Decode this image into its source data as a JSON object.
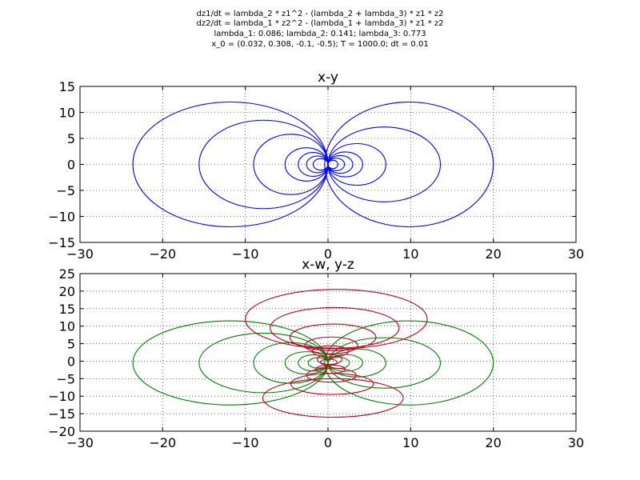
{
  "figure": {
    "suptitle_lines": [
      "dz1/dt = lambda_2 * z1^2 - (lambda_2 + lambda_3) * z1 * z2",
      "dz2/dt = lambda_1 * z2^2 - (lambda_1 + lambda_3) * z1 * z2",
      "lambda_1: 0.086; lambda_2: 0.141; lambda_3: 0.773",
      "x_0 = (0.032, 0.308, -0.1, -0.5); T = 1000.0; dt = 0.01"
    ]
  },
  "chart_data": [
    {
      "type": "line",
      "title": "x-y",
      "xlim": [
        -30,
        30
      ],
      "ylim": [
        -15,
        15
      ],
      "xticks": [
        -30,
        -20,
        -10,
        0,
        10,
        20,
        30
      ],
      "yticks": [
        -15,
        -10,
        -5,
        0,
        5,
        10,
        15
      ],
      "xtick_labels": [
        "−30",
        "−20",
        "−10",
        "0",
        "10",
        "20",
        "30"
      ],
      "ytick_labels": [
        "−15",
        "−10",
        "−5",
        "0",
        "5",
        "10",
        "15"
      ],
      "grid": true,
      "series": [
        {
          "color": "#0000ff",
          "loops": [
            {
              "cx": -11.8,
              "cy": 0,
              "rx": 11.8,
              "ry": 12
            },
            {
              "cx": -7.8,
              "cy": 0,
              "rx": 7.8,
              "ry": 8.5
            },
            {
              "cx": -4.5,
              "cy": 0,
              "rx": 4.5,
              "ry": 5.8
            },
            {
              "cx": -2.6,
              "cy": 0,
              "rx": 2.6,
              "ry": 3.2
            },
            {
              "cx": -1.8,
              "cy": 0,
              "rx": 1.8,
              "ry": 2.3
            },
            {
              "cx": -1.3,
              "cy": 0,
              "rx": 1.3,
              "ry": 1.6
            },
            {
              "cx": -0.9,
              "cy": 0,
              "rx": 0.9,
              "ry": 1.1
            },
            {
              "cx": 9.8,
              "cy": 0,
              "rx": 10.2,
              "ry": 12
            },
            {
              "cx": 6.8,
              "cy": 0,
              "rx": 6.8,
              "ry": 7.2
            },
            {
              "cx": 3.5,
              "cy": 0,
              "rx": 3.5,
              "ry": 4
            },
            {
              "cx": 2.1,
              "cy": 0,
              "rx": 2.1,
              "ry": 2.4
            },
            {
              "cx": 1.5,
              "cy": 0,
              "rx": 1.5,
              "ry": 1.7
            },
            {
              "cx": 1.0,
              "cy": 0,
              "rx": 1.0,
              "ry": 1.2
            },
            {
              "cx": 0.6,
              "cy": 0,
              "rx": 0.6,
              "ry": 0.8
            }
          ]
        }
      ]
    },
    {
      "type": "line",
      "title": "x-w, y-z",
      "xlim": [
        -30,
        30
      ],
      "ylim": [
        -20,
        25
      ],
      "xticks": [
        -30,
        -20,
        -10,
        0,
        10,
        20,
        30
      ],
      "yticks": [
        -20,
        -15,
        -10,
        -5,
        0,
        5,
        10,
        15,
        20,
        25
      ],
      "xtick_labels": [
        "−30",
        "−20",
        "−10",
        "0",
        "10",
        "20",
        "30"
      ],
      "ytick_labels": [
        "−20",
        "−15",
        "−10",
        "−5",
        "0",
        "5",
        "10",
        "15",
        "20",
        "25"
      ],
      "grid": true,
      "series": [
        {
          "color": "#008000",
          "loops": [
            {
              "cx": -11.8,
              "cy": -0.5,
              "rx": 11.8,
              "ry": 12
            },
            {
              "cx": -7.8,
              "cy": -0.5,
              "rx": 7.8,
              "ry": 8.5
            },
            {
              "cx": -4.5,
              "cy": -0.5,
              "rx": 4.5,
              "ry": 5.8
            },
            {
              "cx": -2.6,
              "cy": -0.5,
              "rx": 2.6,
              "ry": 3.2
            },
            {
              "cx": -1.8,
              "cy": -0.5,
              "rx": 1.8,
              "ry": 2.3
            },
            {
              "cx": -1.2,
              "cy": -0.5,
              "rx": 1.2,
              "ry": 1.5
            },
            {
              "cx": 9.8,
              "cy": -0.5,
              "rx": 10.2,
              "ry": 12
            },
            {
              "cx": 6.8,
              "cy": -0.5,
              "rx": 6.8,
              "ry": 7.2
            },
            {
              "cx": 3.5,
              "cy": -0.5,
              "rx": 3.5,
              "ry": 4
            },
            {
              "cx": 2.1,
              "cy": -0.5,
              "rx": 2.1,
              "ry": 2.4
            },
            {
              "cx": 1.3,
              "cy": -0.5,
              "rx": 1.3,
              "ry": 1.6
            }
          ]
        },
        {
          "color": "#c00020",
          "loops": [
            {
              "cx": 1.0,
              "cy": 12,
              "rx": 11,
              "ry": 8.5
            },
            {
              "cx": 0.8,
              "cy": 9.5,
              "rx": 7.8,
              "ry": 5.8
            },
            {
              "cx": 0.6,
              "cy": 6.8,
              "rx": 5.2,
              "ry": 3.8
            },
            {
              "cx": 0.4,
              "cy": 4.5,
              "rx": 3.2,
              "ry": 2.4
            },
            {
              "cx": 0.3,
              "cy": 2.8,
              "rx": 2.2,
              "ry": 1.6
            },
            {
              "cx": 0.6,
              "cy": -10.5,
              "rx": 8.5,
              "ry": 5.5
            },
            {
              "cx": 0.5,
              "cy": -6.5,
              "rx": 5.0,
              "ry": 3.0
            },
            {
              "cx": 0.4,
              "cy": -4.0,
              "rx": 3.0,
              "ry": 2.0
            },
            {
              "cx": 0.3,
              "cy": -2.3,
              "rx": 1.8,
              "ry": 1.2
            },
            {
              "cx": 0.2,
              "cy": 0.5,
              "rx": 1.5,
              "ry": 1.4
            },
            {
              "cx": 0.1,
              "cy": -0.3,
              "rx": 1.0,
              "ry": 0.9
            }
          ]
        }
      ]
    }
  ]
}
